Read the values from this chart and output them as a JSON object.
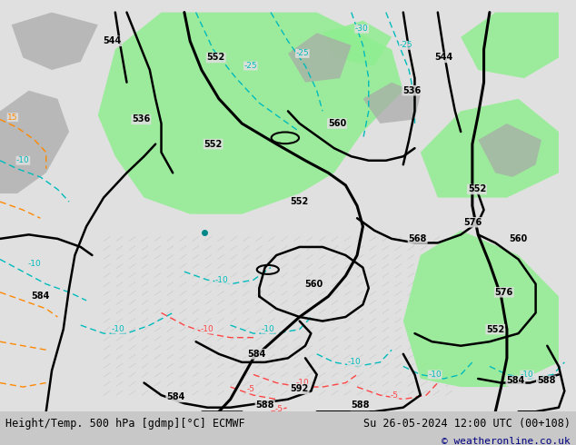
{
  "title_left": "Height/Temp. 500 hPa [gdmp][°C] ECMWF",
  "title_right": "Su 26-05-2024 12:00 UTC (00+108)",
  "copyright": "© weatheronline.co.uk",
  "bg_color": "#e0e0e0",
  "green_fill": "#90ee90",
  "gray_fill": "#a8a8a8",
  "bottom_bar_color": "#c8c8c8",
  "copyright_color": "#000080",
  "fig_width": 6.34,
  "fig_height": 4.9
}
